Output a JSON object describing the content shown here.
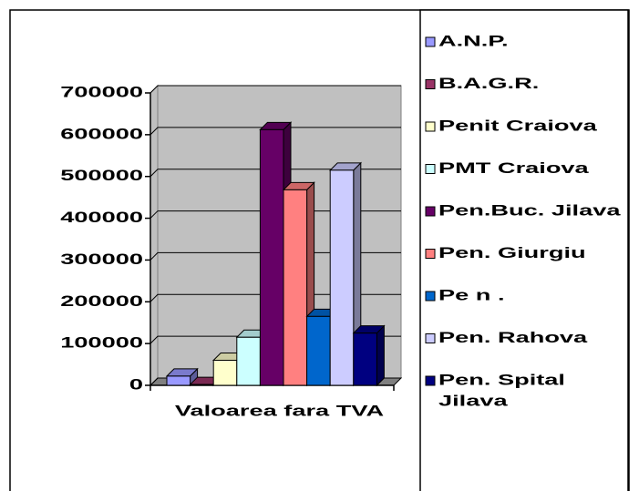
{
  "chart_data": {
    "type": "bar3d",
    "categories": [
      "Valoarea fara TVA"
    ],
    "series": [
      {
        "name": "A.N.P.",
        "color": "#9999ff",
        "values": [
          22000
        ]
      },
      {
        "name": "B.A.G.R.",
        "color": "#993366",
        "values": [
          2000
        ]
      },
      {
        "name": "Penit Craiova",
        "color": "#ffffcc",
        "values": [
          60000
        ]
      },
      {
        "name": "PMT Craiova",
        "color": "#ccffff",
        "values": [
          115000
        ]
      },
      {
        "name": "Pen.Buc. Jilava",
        "color": "#660066",
        "values": [
          612000
        ]
      },
      {
        "name": "Pen. Giurgiu",
        "color": "#ff8080",
        "values": [
          468000
        ]
      },
      {
        "name": "Pe n .",
        "color": "#0066cc",
        "values": [
          165000
        ]
      },
      {
        "name": "Pen. Rahova",
        "color": "#ccccff",
        "values": [
          515000
        ]
      },
      {
        "name": "Pen. Spital Jilava",
        "color": "#000080",
        "values": [
          125000
        ]
      }
    ],
    "ylim": [
      0,
      700000
    ],
    "yticks": [
      0,
      100000,
      200000,
      300000,
      400000,
      500000,
      600000,
      700000
    ],
    "grid": true,
    "wall_color": "#c0c0c0",
    "legend": "right"
  }
}
